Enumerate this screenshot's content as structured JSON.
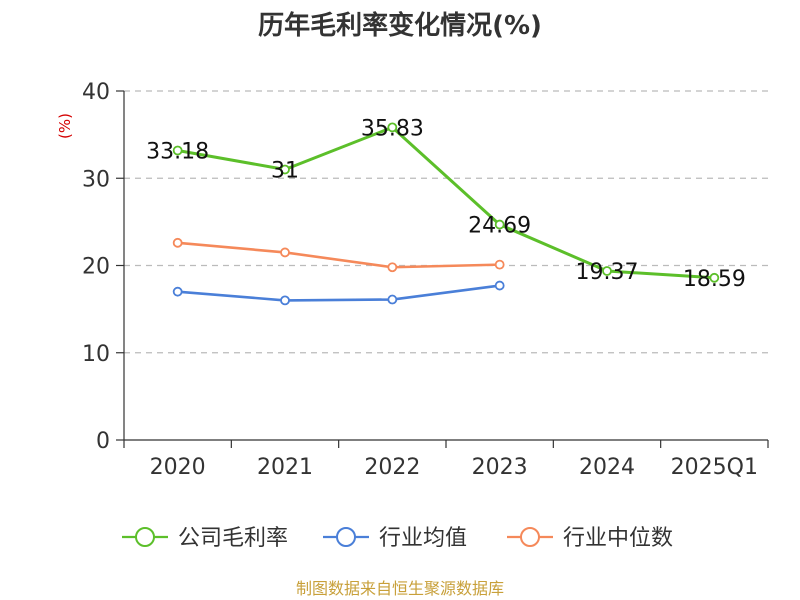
{
  "chart_data": {
    "type": "line",
    "title": "历年毛利率变化情况(%)",
    "ylabel": "(%)",
    "xlabel": "",
    "categories": [
      "2020",
      "2021",
      "2022",
      "2023",
      "2024",
      "2025Q1"
    ],
    "ylim": [
      0,
      40
    ],
    "yticks": [
      0,
      10,
      20,
      30,
      40
    ],
    "grid": true,
    "legend_position": "bottom",
    "series": [
      {
        "name": "公司毛利率",
        "color": "#5cbf2a",
        "values": [
          33.18,
          31,
          35.83,
          24.69,
          19.37,
          18.59
        ],
        "labels": [
          "33.18",
          "31",
          "35.83",
          "24.69",
          "19.37",
          "18.59"
        ]
      },
      {
        "name": "行业均值",
        "color": "#4a7fd8",
        "values": [
          17.0,
          16.0,
          16.1,
          17.7,
          null,
          null
        ]
      },
      {
        "name": "行业中位数",
        "color": "#f5895a",
        "values": [
          22.6,
          21.5,
          19.8,
          20.1,
          null,
          null
        ]
      }
    ]
  },
  "footer": {
    "source": "制图数据来自恒生聚源数据库"
  }
}
